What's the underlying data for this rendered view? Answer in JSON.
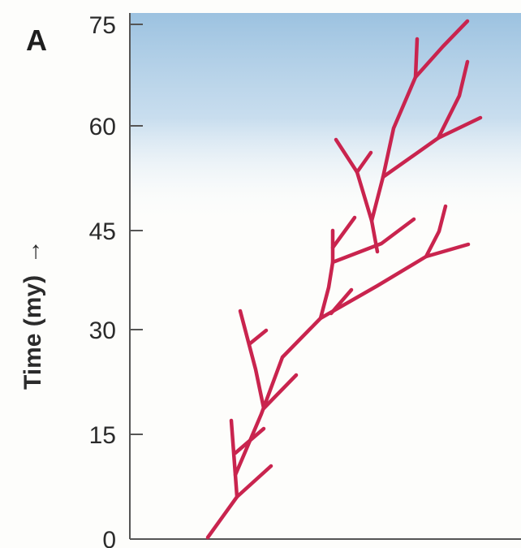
{
  "panel_label": "A",
  "axis": {
    "title": "Time (my)",
    "arrow": "→",
    "ticks": [
      "0",
      "15",
      "30",
      "45",
      "60",
      "75"
    ]
  },
  "colors": {
    "branch": "#c9244e",
    "sky_top": "#9cc2e0",
    "axis": "#555555"
  }
}
